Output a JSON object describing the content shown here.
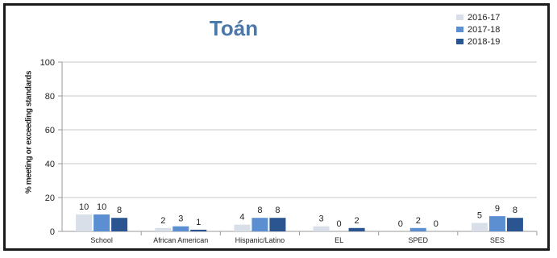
{
  "chart_data": {
    "type": "bar",
    "title": "Toán",
    "xlabel": "",
    "ylabel": "% meeting or exceeding standards",
    "ylim": [
      0,
      100
    ],
    "yticks": [
      0,
      20,
      40,
      60,
      80,
      100
    ],
    "grid": true,
    "legend_position": "top-right",
    "categories": [
      "School",
      "African American",
      "Hispanic/Latino",
      "EL",
      "SPED",
      "SES"
    ],
    "series": [
      {
        "name": "2016-17",
        "color": "#d9dfe8",
        "values": [
          10,
          2,
          4,
          3,
          0,
          5
        ]
      },
      {
        "name": "2017-18",
        "color": "#5b8fd1",
        "values": [
          10,
          3,
          8,
          0,
          2,
          9
        ]
      },
      {
        "name": "2018-19",
        "color": "#2a5591",
        "values": [
          8,
          1,
          8,
          2,
          0,
          8
        ]
      }
    ]
  }
}
